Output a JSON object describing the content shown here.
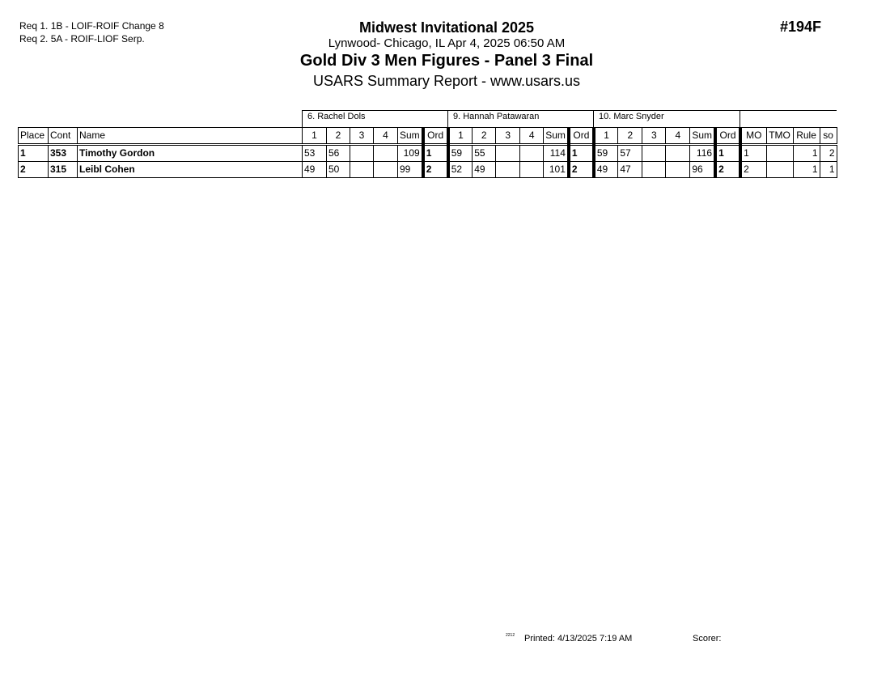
{
  "requirements": [
    "Req  1.  1B - LOIF-ROIF Change 8",
    "Req  2.  5A - ROIF-LIOF Serp."
  ],
  "header": {
    "competition": "Midwest Invitational 2025",
    "location": "Lynwood- Chicago, IL  Apr 4, 2025  06:50 AM",
    "event": "Gold Div 3 Men Figures - Panel 3 Final",
    "report": "USARS Summary Report - www.usars.us",
    "event_number": "#194F"
  },
  "judges": [
    "6.  Rachel Dols",
    "9.  Hannah Patawaran",
    "10.  Marc Snyder"
  ],
  "columns": {
    "place": "Place",
    "cont": "Cont",
    "name": "Name",
    "s1": "1",
    "s2": "2",
    "s3": "3",
    "s4": "4",
    "sum": "Sum",
    "ord": "Ord",
    "mo": "MO",
    "tmo": "TMO",
    "rule": "Rule",
    "so": "so"
  },
  "rows": [
    {
      "place": "1",
      "cont": "353",
      "name": "Timothy Gordon",
      "judges": [
        {
          "s": [
            "53",
            "56",
            "",
            ""
          ],
          "sum": "109",
          "ord": "1"
        },
        {
          "s": [
            "59",
            "55",
            "",
            ""
          ],
          "sum": "114",
          "ord": "1"
        },
        {
          "s": [
            "59",
            "57",
            "",
            ""
          ],
          "sum": "116",
          "ord": "1"
        }
      ],
      "mo": "1",
      "tmo": "",
      "rule": "1",
      "so": "2"
    },
    {
      "place": "2",
      "cont": "315",
      "name": "Leibl Cohen",
      "judges": [
        {
          "s": [
            "49",
            "50",
            "",
            ""
          ],
          "sum": "99",
          "ord": "2"
        },
        {
          "s": [
            "52",
            "49",
            "",
            ""
          ],
          "sum": "101",
          "ord": "2"
        },
        {
          "s": [
            "49",
            "47",
            "",
            ""
          ],
          "sum": "96",
          "ord": "2"
        }
      ],
      "mo": "2",
      "tmo": "",
      "rule": "1",
      "so": "1"
    }
  ],
  "footer": {
    "version": "2212",
    "printed": "Printed:  4/13/2025  7:19 AM",
    "scorer": "Scorer:"
  }
}
